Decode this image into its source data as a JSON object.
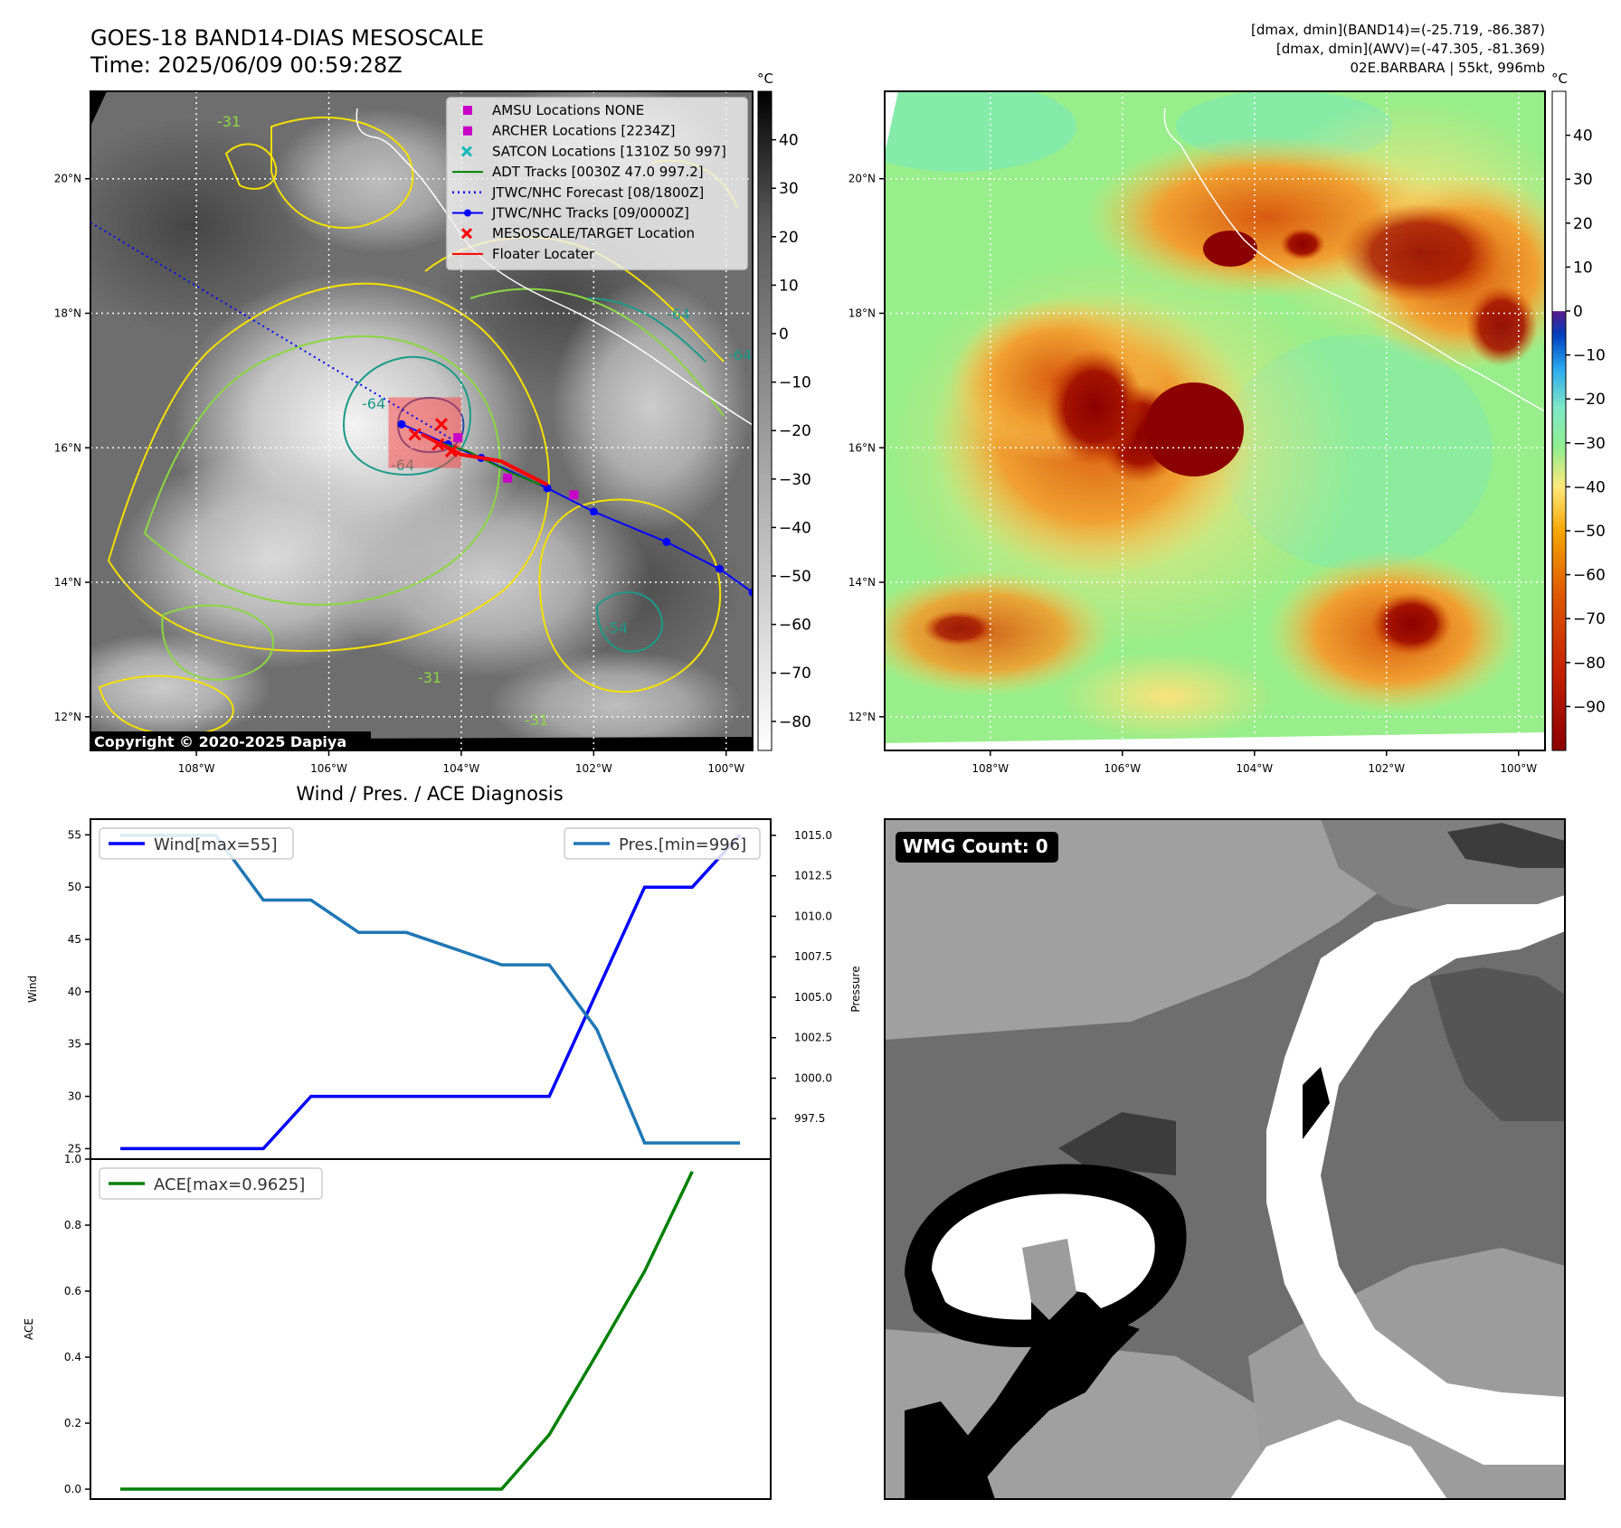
{
  "header": {
    "title_line1": "GOES-18 BAND14-DIAS MESOSCALE",
    "title_line2": "Time: 2025/06/09 00:59:28Z",
    "stats_line1": "[dmax, dmin](BAND14)=(-25.719, -86.387)",
    "stats_line2": "[dmax, dmin](AWV)=(-47.305, -81.369)",
    "stats_line3": "02E.BARBARA | 55kt, 996mb"
  },
  "map_common": {
    "lon_ticks": [
      "108°W",
      "106°W",
      "104°W",
      "102°W",
      "100°W"
    ],
    "lat_ticks": [
      "20°N",
      "18°N",
      "16°N",
      "14°N",
      "12°N"
    ],
    "lon_range": [
      -109.6,
      -99.6
    ],
    "lat_range": [
      11.5,
      21.3
    ],
    "lon_values": [
      -108,
      -106,
      -104,
      -102,
      -100
    ],
    "lat_values": [
      20,
      18,
      16,
      14,
      12
    ]
  },
  "ir_panel": {
    "copyright": "Copyright © 2020-2025 Dapiya",
    "colorbar_unit": "°C",
    "colorbar_ticks": [
      "40",
      "30",
      "20",
      "10",
      "0",
      "−10",
      "−20",
      "−30",
      "−40",
      "−50",
      "−60",
      "−70",
      "−80"
    ],
    "colorbar_range": [
      -86,
      50
    ],
    "colorbar_values": [
      40,
      30,
      20,
      10,
      0,
      -10,
      -20,
      -30,
      -40,
      -50,
      -60,
      -70,
      -80
    ],
    "contour_labels": [
      "-64",
      "-64",
      "-64",
      "-31",
      "-31",
      "-31",
      "-64",
      "-54"
    ],
    "legend": [
      {
        "label": "AMSU Locations NONE",
        "marker": "square",
        "color": "#c800c8"
      },
      {
        "label": "ARCHER Locations [2234Z]",
        "marker": "square",
        "color": "#c800c8"
      },
      {
        "label": "SATCON Locations [1310Z 50 997]",
        "marker": "x",
        "color": "#18b8b8"
      },
      {
        "label": "ADT Tracks [0030Z 47.0 997.2]",
        "marker": "line",
        "color": "#008000"
      },
      {
        "label": "JTWC/NHC Forecast [08/1800Z]",
        "marker": "dotted",
        "color": "#0000ff"
      },
      {
        "label": "JTWC/NHC Tracks [09/0000Z]",
        "marker": "line-dot",
        "color": "#0000ff"
      },
      {
        "label": "MESOSCALE/TARGET Location",
        "marker": "x",
        "color": "#ff0000"
      },
      {
        "label": "Floater Locater",
        "marker": "line",
        "color": "#ff0000"
      }
    ],
    "forecast_track": [
      [
        -109.6,
        19.35
      ],
      [
        -104.1,
        16.1
      ]
    ],
    "nhc_track": [
      [
        -104.9,
        16.35
      ],
      [
        -104.2,
        16.05
      ],
      [
        -103.7,
        15.85
      ],
      [
        -102.7,
        15.4
      ],
      [
        -102.0,
        15.05
      ],
      [
        -100.9,
        14.6
      ],
      [
        -100.1,
        14.2
      ],
      [
        -99.6,
        13.85
      ]
    ],
    "adt_track": [
      [
        -104.4,
        16.1
      ],
      [
        -103.9,
        15.95
      ],
      [
        -103.3,
        15.65
      ],
      [
        -102.8,
        15.45
      ]
    ],
    "floater_track": [
      [
        -104.6,
        16.2
      ],
      [
        -104.0,
        15.9
      ],
      [
        -103.4,
        15.8
      ],
      [
        -102.7,
        15.45
      ]
    ],
    "mesoscale_points": [
      [
        -104.7,
        16.2
      ],
      [
        -104.35,
        16.05
      ],
      [
        -104.15,
        15.95
      ],
      [
        -104.3,
        16.35
      ]
    ],
    "archer_points": [
      [
        -104.05,
        16.15
      ],
      [
        -103.3,
        15.55
      ],
      [
        -102.3,
        15.3
      ]
    ],
    "box": {
      "lon": [
        -105.1,
        -104.0
      ],
      "lat": [
        15.7,
        16.75
      ]
    }
  },
  "wv_panel": {
    "colorbar_unit": "°C",
    "colorbar_ticks": [
      "40",
      "30",
      "20",
      "10",
      "0",
      "−10",
      "−20",
      "−30",
      "−40",
      "−50",
      "−60",
      "−70",
      "−80",
      "−90"
    ],
    "colorbar_range": [
      -100,
      50
    ],
    "colorbar_values": [
      40,
      30,
      20,
      10,
      0,
      -10,
      -20,
      -30,
      -40,
      -50,
      -60,
      -70,
      -80,
      -90
    ]
  },
  "wmg_panel": {
    "badge": "WMG Count: 0"
  },
  "chart_data": [
    {
      "type": "line",
      "title": "Wind / Pres. / ACE Diagnosis",
      "ylabel": "Wind",
      "y2label": "Pressure",
      "ylim": [
        24,
        56.5
      ],
      "y2lim": [
        995.0,
        1016.0
      ],
      "yticks": [
        "55",
        "50",
        "45",
        "40",
        "35",
        "30",
        "25"
      ],
      "ytick_values": [
        55,
        50,
        45,
        40,
        35,
        30,
        25
      ],
      "y2ticks": [
        "1015.0",
        "1012.5",
        "1010.0",
        "1007.5",
        "1005.0",
        "1002.5",
        "1000.0",
        "997.5"
      ],
      "y2tick_values": [
        1015.0,
        1012.5,
        1010.0,
        1007.5,
        1005.0,
        1002.5,
        1000.0,
        997.5
      ],
      "x": [
        0,
        1,
        2,
        3,
        4,
        5,
        6,
        7,
        8,
        9,
        10,
        11,
        12,
        13
      ],
      "series": [
        {
          "name": "Wind[max=55]",
          "axis": "left",
          "color": "#0000ff",
          "values": [
            25,
            25,
            25,
            25,
            30,
            30,
            30,
            30,
            30,
            30,
            40,
            50,
            50,
            55
          ]
        },
        {
          "name": "Pres.[min=996]",
          "axis": "right",
          "color": "#1f77b4",
          "values": [
            1015,
            1015,
            1015,
            1011,
            1011,
            1009,
            1009,
            1008,
            1007,
            1007,
            1003,
            996,
            996,
            996
          ]
        }
      ]
    },
    {
      "type": "line",
      "ylabel": "ACE",
      "ylim": [
        -0.03,
        1.0
      ],
      "yticks": [
        "1.0",
        "0.8",
        "0.6",
        "0.4",
        "0.2",
        "0.0"
      ],
      "ytick_values": [
        1.0,
        0.8,
        0.6,
        0.4,
        0.2,
        0.0
      ],
      "x": [
        0,
        1,
        2,
        3,
        4,
        5,
        6,
        7,
        8,
        9,
        10,
        11,
        12,
        13
      ],
      "series": [
        {
          "name": "ACE[max=0.9625]",
          "color": "#008000",
          "values": [
            0,
            0,
            0,
            0,
            0,
            0,
            0,
            0,
            0,
            0.165,
            0.41,
            0.66,
            0.9625,
            0.9625
          ]
        }
      ]
    }
  ]
}
